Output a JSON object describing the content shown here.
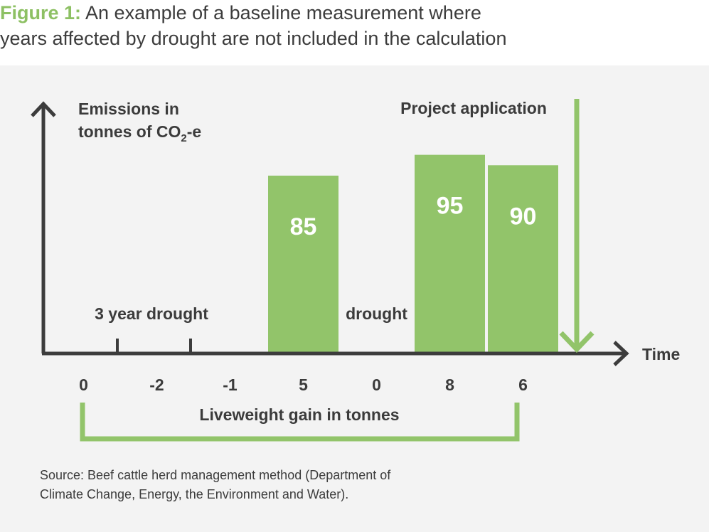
{
  "caption": {
    "label": "Figure 1:",
    "line1": "An example of a baseline measurement where",
    "line2": "years affected by drought are not included in the calculation"
  },
  "chart_data": {
    "type": "bar",
    "y_label": {
      "line1": "Emissions in",
      "line2_prefix": "tonnes of CO",
      "line2_sub": "2",
      "line2_suffix": "-e"
    },
    "x_label": "Time",
    "periods": [
      {
        "liveweight": "0",
        "emissions": null,
        "note": ""
      },
      {
        "liveweight": "-2",
        "emissions": null,
        "note": ""
      },
      {
        "liveweight": "-1",
        "emissions": null,
        "note": ""
      },
      {
        "liveweight": "5",
        "emissions": 85,
        "note": ""
      },
      {
        "liveweight": "0",
        "emissions": null,
        "note": "drought"
      },
      {
        "liveweight": "8",
        "emissions": 95,
        "note": ""
      },
      {
        "liveweight": "6",
        "emissions": 90,
        "note": ""
      }
    ],
    "range_note": "3 year drought",
    "bracket_label": "Liveweight gain in tonnes",
    "marker_label": "Project application",
    "colors": {
      "bar": "#92c46a",
      "axis": "#3c3c3c",
      "bar_text": "#ffffff"
    }
  },
  "source": {
    "line1": "Source: Beef cattle herd management method (Department of",
    "line2": "Climate Change, Energy, the Environment and Water)."
  }
}
